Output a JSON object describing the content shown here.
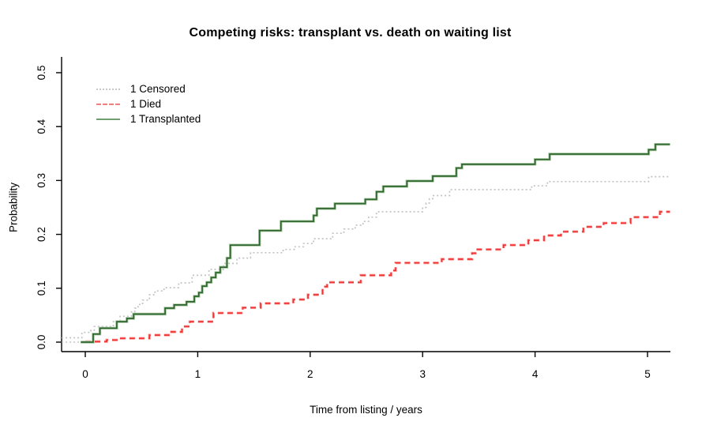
{
  "chart_data": {
    "type": "line",
    "subtype": "step-function cumulative incidence (competing risks)",
    "title": "Competing risks: transplant vs. death on waiting list",
    "xlabel": "Time from listing / years",
    "ylabel": "Probability",
    "x_ticks": [
      0,
      1,
      2,
      3,
      4,
      5
    ],
    "y_ticks": [
      {
        "value": 0.0,
        "label": "0.0"
      },
      {
        "value": 0.1,
        "label": "0.1"
      },
      {
        "value": 0.2,
        "label": "0.2"
      },
      {
        "value": 0.3,
        "label": "0.3"
      },
      {
        "value": 0.4,
        "label": "0.4"
      },
      {
        "value": 0.5,
        "label": "0.5"
      }
    ],
    "xlim": [
      -0.21,
      5.2
    ],
    "ylim": [
      -0.018,
      0.532
    ],
    "grid": false,
    "legend_position": "top-left",
    "axis_color": "#000000",
    "background_color": "#ffffff",
    "series": [
      {
        "name": "1 Censored",
        "style": "dotted",
        "color": "#c3c3c3",
        "halo_color": null,
        "legend_color": "#c9c9c9",
        "points": [
          [
            -0.21,
            0.008
          ],
          [
            -0.03,
            0.018
          ],
          [
            0.05,
            0.022
          ],
          [
            0.08,
            0.029
          ],
          [
            0.25,
            0.038
          ],
          [
            0.31,
            0.048
          ],
          [
            0.41,
            0.056
          ],
          [
            0.44,
            0.063
          ],
          [
            0.47,
            0.07
          ],
          [
            0.51,
            0.078
          ],
          [
            0.57,
            0.088
          ],
          [
            0.62,
            0.095
          ],
          [
            0.7,
            0.101
          ],
          [
            0.83,
            0.11
          ],
          [
            0.95,
            0.124
          ],
          [
            1.1,
            0.135
          ],
          [
            1.23,
            0.146
          ],
          [
            1.35,
            0.156
          ],
          [
            1.47,
            0.166
          ],
          [
            1.76,
            0.172
          ],
          [
            1.86,
            0.177
          ],
          [
            1.94,
            0.183
          ],
          [
            2.03,
            0.192
          ],
          [
            2.2,
            0.202
          ],
          [
            2.3,
            0.21
          ],
          [
            2.4,
            0.217
          ],
          [
            2.47,
            0.224
          ],
          [
            2.52,
            0.232
          ],
          [
            2.59,
            0.242
          ],
          [
            3.0,
            0.25
          ],
          [
            3.03,
            0.258
          ],
          [
            3.06,
            0.266
          ],
          [
            3.09,
            0.272
          ],
          [
            3.24,
            0.283
          ],
          [
            3.97,
            0.29
          ],
          [
            4.11,
            0.298
          ],
          [
            5.01,
            0.307
          ],
          [
            5.2,
            0.307
          ]
        ]
      },
      {
        "name": "1 Died",
        "style": "dashed",
        "color": "#ee3333",
        "halo_color": "#ffa3a3",
        "legend_color": "#f08080",
        "points": [
          [
            0.0,
            0.001
          ],
          [
            0.19,
            0.004
          ],
          [
            0.3,
            0.007
          ],
          [
            0.57,
            0.013
          ],
          [
            0.75,
            0.019
          ],
          [
            0.86,
            0.029
          ],
          [
            0.93,
            0.038
          ],
          [
            1.14,
            0.054
          ],
          [
            1.4,
            0.064
          ],
          [
            1.56,
            0.072
          ],
          [
            1.85,
            0.079
          ],
          [
            1.98,
            0.088
          ],
          [
            2.11,
            0.103
          ],
          [
            2.15,
            0.111
          ],
          [
            2.45,
            0.124
          ],
          [
            2.72,
            0.133
          ],
          [
            2.76,
            0.147
          ],
          [
            3.17,
            0.154
          ],
          [
            3.44,
            0.165
          ],
          [
            3.47,
            0.172
          ],
          [
            3.72,
            0.18
          ],
          [
            3.94,
            0.189
          ],
          [
            4.08,
            0.198
          ],
          [
            4.23,
            0.205
          ],
          [
            4.43,
            0.214
          ],
          [
            4.61,
            0.221
          ],
          [
            4.85,
            0.232
          ],
          [
            5.11,
            0.242
          ],
          [
            5.2,
            0.242
          ]
        ]
      },
      {
        "name": "1 Transplanted",
        "style": "solid",
        "color": "#2d662d",
        "halo_color": "#a9c7a2",
        "legend_color": "#6f9e6f",
        "points": [
          [
            -0.04,
            0.0
          ],
          [
            0.07,
            0.015
          ],
          [
            0.13,
            0.026
          ],
          [
            0.28,
            0.038
          ],
          [
            0.37,
            0.044
          ],
          [
            0.43,
            0.052
          ],
          [
            0.71,
            0.063
          ],
          [
            0.79,
            0.069
          ],
          [
            0.9,
            0.075
          ],
          [
            0.97,
            0.085
          ],
          [
            1.01,
            0.092
          ],
          [
            1.04,
            0.104
          ],
          [
            1.08,
            0.111
          ],
          [
            1.12,
            0.12
          ],
          [
            1.16,
            0.129
          ],
          [
            1.2,
            0.139
          ],
          [
            1.26,
            0.156
          ],
          [
            1.29,
            0.18
          ],
          [
            1.55,
            0.207
          ],
          [
            1.74,
            0.224
          ],
          [
            2.03,
            0.235
          ],
          [
            2.06,
            0.248
          ],
          [
            2.22,
            0.257
          ],
          [
            2.49,
            0.265
          ],
          [
            2.59,
            0.279
          ],
          [
            2.65,
            0.289
          ],
          [
            2.86,
            0.299
          ],
          [
            3.09,
            0.308
          ],
          [
            3.3,
            0.323
          ],
          [
            3.35,
            0.33
          ],
          [
            4.0,
            0.339
          ],
          [
            4.13,
            0.349
          ],
          [
            5.01,
            0.357
          ],
          [
            5.07,
            0.367
          ],
          [
            5.2,
            0.367
          ]
        ]
      }
    ],
    "extra_segments": [
      {
        "series": "1 Censored",
        "style": "dotted",
        "color": "#c3c3c3",
        "points": [
          [
            -0.21,
            0.0
          ],
          [
            0.0,
            0.0
          ]
        ]
      }
    ]
  }
}
